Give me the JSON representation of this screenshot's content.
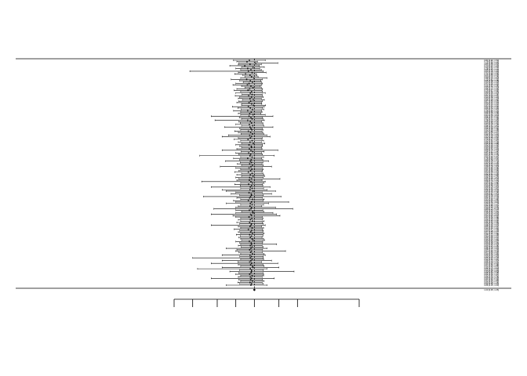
{
  "chart_data": {
    "type": "forest",
    "title": "",
    "xlabel": "",
    "scale": "log",
    "xlim": [
      0.05,
      50
    ],
    "x_ticks": [
      0.05,
      0.1,
      0.25,
      0.5,
      1,
      2.5,
      5,
      10,
      50
    ],
    "x_tick_labels": [
      "",
      "",
      "",
      "",
      "",
      "",
      "",
      "",
      ""
    ],
    "reference_line": 1,
    "pooled": {
      "label": "",
      "estimate": 1.0,
      "lower": 0.95,
      "upper": 1.05
    },
    "studies": [
      {
        "label": "",
        "estimate": 0.83,
        "lower": 0.46,
        "upper": 1.5
      },
      {
        "label": "",
        "estimate": 0.76,
        "lower": 0.52,
        "upper": 1.12
      },
      {
        "label": "",
        "estimate": 1.05,
        "lower": 0.56,
        "upper": 2.4
      },
      {
        "label": "",
        "estimate": 0.85,
        "lower": 0.55,
        "upper": 1.3
      },
      {
        "label": "",
        "estimate": 0.7,
        "lower": 0.4,
        "upper": 1.2
      },
      {
        "label": "",
        "estimate": 0.95,
        "lower": 0.62,
        "upper": 1.45
      },
      {
        "label": "",
        "estimate": 0.78,
        "lower": 0.5,
        "upper": 1.22
      },
      {
        "label": "",
        "estimate": 0.88,
        "lower": 0.6,
        "upper": 1.3
      },
      {
        "label": "",
        "estimate": 0.8,
        "lower": 0.09,
        "upper": 1.4
      },
      {
        "label": "",
        "estimate": 0.92,
        "lower": 0.55,
        "upper": 1.55
      },
      {
        "label": "",
        "estimate": 0.72,
        "lower": 0.48,
        "upper": 1.08
      },
      {
        "label": "",
        "estimate": 0.85,
        "lower": 0.65,
        "upper": 1.1
      },
      {
        "label": "",
        "estimate": 0.9,
        "lower": 0.7,
        "upper": 1.15
      },
      {
        "label": "",
        "estimate": 0.98,
        "lower": 0.6,
        "upper": 1.6
      },
      {
        "label": "",
        "estimate": 0.75,
        "lower": 0.42,
        "upper": 1.35
      },
      {
        "label": "",
        "estimate": 0.86,
        "lower": 0.58,
        "upper": 1.28
      },
      {
        "label": "",
        "estimate": 0.93,
        "lower": 0.66,
        "upper": 1.3
      },
      {
        "label": "",
        "estimate": 0.82,
        "lower": 0.5,
        "upper": 1.35
      },
      {
        "label": "",
        "estimate": 0.77,
        "lower": 0.45,
        "upper": 1.32
      },
      {
        "label": "",
        "estimate": 0.88,
        "lower": 0.62,
        "upper": 1.25
      },
      {
        "label": "",
        "estimate": 0.95,
        "lower": 0.7,
        "upper": 1.3
      },
      {
        "label": "",
        "estimate": 0.84,
        "lower": 0.52,
        "upper": 1.36
      },
      {
        "label": "",
        "estimate": 0.79,
        "lower": 0.47,
        "upper": 1.33
      },
      {
        "label": "",
        "estimate": 0.9,
        "lower": 0.6,
        "upper": 1.35
      },
      {
        "label": "",
        "estimate": 0.86,
        "lower": 0.5,
        "upper": 1.5
      },
      {
        "label": "",
        "estimate": 0.92,
        "lower": 0.63,
        "upper": 1.34
      },
      {
        "label": "",
        "estimate": 0.81,
        "lower": 0.49,
        "upper": 1.34
      },
      {
        "label": "",
        "estimate": 0.9,
        "lower": 0.58,
        "upper": 1.4
      },
      {
        "label": "",
        "estimate": 0.85,
        "lower": 0.55,
        "upper": 1.3
      },
      {
        "label": "",
        "estimate": 0.96,
        "lower": 0.64,
        "upper": 1.45
      },
      {
        "label": "",
        "estimate": 0.87,
        "lower": 0.56,
        "upper": 1.35
      },
      {
        "label": "",
        "estimate": 0.82,
        "lower": 0.52,
        "upper": 1.3
      },
      {
        "label": "",
        "estimate": 0.9,
        "lower": 0.62,
        "upper": 1.32
      },
      {
        "label": "",
        "estimate": 0.97,
        "lower": 0.62,
        "upper": 1.52
      },
      {
        "label": "",
        "estimate": 0.8,
        "lower": 0.44,
        "upper": 1.45
      },
      {
        "label": "",
        "estimate": 0.86,
        "lower": 0.54,
        "upper": 1.36
      },
      {
        "label": "",
        "estimate": 0.93,
        "lower": 0.61,
        "upper": 1.42
      },
      {
        "label": "",
        "estimate": 0.78,
        "lower": 0.46,
        "upper": 1.32
      },
      {
        "label": "",
        "estimate": 0.89,
        "lower": 0.6,
        "upper": 1.33
      },
      {
        "label": "",
        "estimate": 0.84,
        "lower": 0.55,
        "upper": 1.28
      },
      {
        "label": "",
        "estimate": 0.95,
        "lower": 0.6,
        "upper": 1.5
      },
      {
        "label": "",
        "estimate": 0.82,
        "lower": 0.2,
        "upper": 2.0
      },
      {
        "label": "",
        "estimate": 0.88,
        "lower": 0.57,
        "upper": 1.36
      },
      {
        "label": "",
        "estimate": 0.92,
        "lower": 0.62,
        "upper": 1.38
      },
      {
        "label": "",
        "estimate": 0.78,
        "lower": 0.23,
        "upper": 1.45
      },
      {
        "label": "",
        "estimate": 0.86,
        "lower": 0.56,
        "upper": 1.32
      },
      {
        "label": "",
        "estimate": 0.9,
        "lower": 0.59,
        "upper": 1.37
      },
      {
        "label": "",
        "estimate": 0.83,
        "lower": 0.5,
        "upper": 1.38
      },
      {
        "label": "",
        "estimate": 0.94,
        "lower": 0.62,
        "upper": 1.42
      },
      {
        "label": "",
        "estimate": 0.85,
        "lower": 0.33,
        "upper": 2.0
      },
      {
        "label": "",
        "estimate": 0.88,
        "lower": 0.58,
        "upper": 1.34
      },
      {
        "label": "",
        "estimate": 0.91,
        "lower": 0.6,
        "upper": 1.38
      },
      {
        "label": "",
        "estimate": 0.8,
        "lower": 0.48,
        "upper": 1.33
      },
      {
        "label": "",
        "estimate": 0.87,
        "lower": 0.55,
        "upper": 1.37
      },
      {
        "label": "",
        "estimate": 0.93,
        "lower": 0.61,
        "upper": 1.42
      },
      {
        "label": "",
        "estimate": 0.84,
        "lower": 0.38,
        "upper": 1.6
      },
      {
        "label": "",
        "estimate": 0.9,
        "lower": 0.3,
        "upper": 1.8
      },
      {
        "label": "",
        "estimate": 0.86,
        "lower": 0.55,
        "upper": 1.34
      },
      {
        "label": "",
        "estimate": 0.79,
        "lower": 0.47,
        "upper": 1.33
      },
      {
        "label": "",
        "estimate": 0.92,
        "lower": 0.6,
        "upper": 1.41
      },
      {
        "label": "",
        "estimate": 0.85,
        "lower": 0.55,
        "upper": 1.3
      },
      {
        "label": "",
        "estimate": 0.96,
        "lower": 0.62,
        "upper": 1.48
      },
      {
        "label": "",
        "estimate": 0.82,
        "lower": 0.5,
        "upper": 1.35
      },
      {
        "label": "",
        "estimate": 0.89,
        "lower": 0.58,
        "upper": 1.36
      },
      {
        "label": "",
        "estimate": 0.9,
        "lower": 0.62,
        "upper": 1.31
      },
      {
        "label": "",
        "estimate": 0.83,
        "lower": 0.52,
        "upper": 1.33
      },
      {
        "label": "",
        "estimate": 0.88,
        "lower": 0.3,
        "upper": 2.4
      },
      {
        "label": "",
        "estimate": 0.94,
        "lower": 0.61,
        "upper": 1.44
      },
      {
        "label": "",
        "estimate": 0.81,
        "lower": 0.5,
        "upper": 1.31
      },
      {
        "label": "",
        "estimate": 0.87,
        "lower": 0.56,
        "upper": 1.35
      },
      {
        "label": "",
        "estimate": 0.85,
        "lower": 0.13,
        "upper": 2.1
      },
      {
        "label": "",
        "estimate": 0.92,
        "lower": 0.6,
        "upper": 1.41
      },
      {
        "label": "",
        "estimate": 0.78,
        "lower": 0.46,
        "upper": 1.32
      },
      {
        "label": "",
        "estimate": 0.89,
        "lower": 0.58,
        "upper": 1.37
      },
      {
        "label": "",
        "estimate": 0.86,
        "lower": 0.34,
        "upper": 1.7
      },
      {
        "label": "",
        "estimate": 0.9,
        "lower": 0.59,
        "upper": 1.38
      },
      {
        "label": "",
        "estimate": 0.84,
        "lower": 0.53,
        "upper": 1.33
      },
      {
        "label": "",
        "estimate": 0.93,
        "lower": 0.62,
        "upper": 1.4
      },
      {
        "label": "",
        "estimate": 0.88,
        "lower": 0.28,
        "upper": 1.9
      },
      {
        "label": "",
        "estimate": 0.82,
        "lower": 0.5,
        "upper": 1.34
      },
      {
        "label": "",
        "estimate": 0.91,
        "lower": 0.6,
        "upper": 1.39
      },
      {
        "label": "",
        "estimate": 0.87,
        "lower": 0.56,
        "upper": 1.35
      },
      {
        "label": "",
        "estimate": 0.8,
        "lower": 0.48,
        "upper": 1.33
      },
      {
        "label": "",
        "estimate": 0.92,
        "lower": 0.62,
        "upper": 1.38
      },
      {
        "label": "",
        "estimate": 0.86,
        "lower": 0.52,
        "upper": 1.42
      },
      {
        "label": "",
        "estimate": 0.95,
        "lower": 0.62,
        "upper": 1.46
      },
      {
        "label": "",
        "estimate": 0.84,
        "lower": 0.5,
        "upper": 1.4
      },
      {
        "label": "",
        "estimate": 0.9,
        "lower": 0.56,
        "upper": 2.6
      },
      {
        "label": "",
        "estimate": 0.83,
        "lower": 0.52,
        "upper": 1.33
      },
      {
        "label": "",
        "estimate": 0.88,
        "lower": 0.14,
        "upper": 1.5
      },
      {
        "label": "",
        "estimate": 0.93,
        "lower": 0.6,
        "upper": 1.44
      },
      {
        "label": "",
        "estimate": 0.81,
        "lower": 0.48,
        "upper": 1.36
      },
      {
        "label": "",
        "estimate": 0.9,
        "lower": 0.59,
        "upper": 1.37
      },
      {
        "label": "",
        "estimate": 0.86,
        "lower": 0.2,
        "upper": 1.8
      },
      {
        "label": "",
        "estimate": 0.92,
        "lower": 0.6,
        "upper": 1.41
      },
      {
        "label": "",
        "estimate": 0.85,
        "lower": 0.3,
        "upper": 1.6
      },
      {
        "label": "",
        "estimate": 0.95,
        "lower": 0.35,
        "upper": 2.2
      },
      {
        "label": "",
        "estimate": 0.82,
        "lower": 0.5,
        "upper": 1.34
      },
      {
        "label": "",
        "estimate": 0.89,
        "lower": 0.42,
        "upper": 1.9
      },
      {
        "label": "",
        "estimate": 0.9,
        "lower": 0.58,
        "upper": 1.4
      },
      {
        "label": "",
        "estimate": 0.87,
        "lower": 0.15,
        "upper": 2.7
      },
      {
        "label": "",
        "estimate": 0.84,
        "lower": 0.52,
        "upper": 1.35
      },
      {
        "label": "",
        "estimate": 0.93,
        "lower": 0.6,
        "upper": 1.44
      },
      {
        "label": "",
        "estimate": 0.8,
        "lower": 0.46,
        "upper": 1.39
      },
      {
        "label": "",
        "estimate": 0.9,
        "lower": 0.5,
        "upper": 3.6
      },
      {
        "label": "",
        "estimate": 0.86,
        "lower": 0.35,
        "upper": 1.7
      },
      {
        "label": "",
        "estimate": 0.92,
        "lower": 0.6,
        "upper": 1.41
      },
      {
        "label": "",
        "estimate": 0.85,
        "lower": 0.55,
        "upper": 1.32
      },
      {
        "label": "",
        "estimate": 0.9,
        "lower": 0.5,
        "upper": 2.2
      },
      {
        "label": "",
        "estimate": 0.88,
        "lower": 0.22,
        "upper": 4.2
      },
      {
        "label": "",
        "estimate": 0.83,
        "lower": 0.5,
        "upper": 1.37
      },
      {
        "label": "",
        "estimate": 0.94,
        "lower": 0.62,
        "upper": 1.42
      },
      {
        "label": "",
        "estimate": 0.95,
        "lower": 0.5,
        "upper": 2.0
      },
      {
        "label": "",
        "estimate": 0.87,
        "lower": 0.2,
        "upper": 2.3
      },
      {
        "label": "",
        "estimate": 0.9,
        "lower": 0.45,
        "upper": 2.6
      },
      {
        "label": "",
        "estimate": 0.82,
        "lower": 0.5,
        "upper": 1.34
      },
      {
        "label": "",
        "estimate": 0.91,
        "lower": 0.6,
        "upper": 1.38
      },
      {
        "label": "",
        "estimate": 0.86,
        "lower": 0.55,
        "upper": 1.35
      },
      {
        "label": "",
        "estimate": 0.93,
        "lower": 0.6,
        "upper": 1.44
      },
      {
        "label": "",
        "estimate": 0.84,
        "lower": 0.52,
        "upper": 1.36
      },
      {
        "label": "",
        "estimate": 0.9,
        "lower": 0.58,
        "upper": 1.39
      },
      {
        "label": "",
        "estimate": 0.88,
        "lower": 0.2,
        "upper": 1.5
      },
      {
        "label": "",
        "estimate": 0.85,
        "lower": 0.55,
        "upper": 1.31
      },
      {
        "label": "",
        "estimate": 0.92,
        "lower": 0.6,
        "upper": 1.41
      },
      {
        "label": "",
        "estimate": 0.8,
        "lower": 0.47,
        "upper": 1.36
      },
      {
        "label": "",
        "estimate": 0.9,
        "lower": 0.58,
        "upper": 1.39
      },
      {
        "label": "",
        "estimate": 0.87,
        "lower": 0.55,
        "upper": 1.37
      },
      {
        "label": "",
        "estimate": 0.93,
        "lower": 0.6,
        "upper": 1.44
      },
      {
        "label": "",
        "estimate": 0.84,
        "lower": 0.51,
        "upper": 1.38
      },
      {
        "label": "",
        "estimate": 0.9,
        "lower": 0.59,
        "upper": 1.37
      },
      {
        "label": "",
        "estimate": 0.86,
        "lower": 0.56,
        "upper": 1.33
      },
      {
        "label": "",
        "estimate": 0.92,
        "lower": 0.6,
        "upper": 1.41
      },
      {
        "label": "",
        "estimate": 0.95,
        "lower": 0.62,
        "upper": 1.46
      },
      {
        "label": "",
        "estimate": 0.83,
        "lower": 0.5,
        "upper": 1.37
      },
      {
        "label": "",
        "estimate": 0.89,
        "lower": 0.58,
        "upper": 1.36
      },
      {
        "label": "",
        "estimate": 0.9,
        "lower": 0.6,
        "upper": 2.3
      },
      {
        "label": "",
        "estimate": 0.86,
        "lower": 0.55,
        "upper": 1.34
      },
      {
        "label": "",
        "estimate": 0.92,
        "lower": 0.61,
        "upper": 1.39
      },
      {
        "label": "",
        "estimate": 0.88,
        "lower": 0.35,
        "upper": 1.6
      },
      {
        "label": "",
        "estimate": 0.84,
        "lower": 0.52,
        "upper": 1.36
      },
      {
        "label": "",
        "estimate": 0.9,
        "lower": 0.5,
        "upper": 3.2
      },
      {
        "label": "",
        "estimate": 0.87,
        "lower": 0.56,
        "upper": 1.35
      },
      {
        "label": "",
        "estimate": 0.93,
        "lower": 0.6,
        "upper": 1.44
      },
      {
        "label": "",
        "estimate": 0.85,
        "lower": 0.3,
        "upper": 1.5
      },
      {
        "label": "",
        "estimate": 0.9,
        "lower": 0.58,
        "upper": 1.4
      },
      {
        "label": "",
        "estimate": 0.86,
        "lower": 0.1,
        "upper": 1.4
      },
      {
        "label": "",
        "estimate": 0.92,
        "lower": 0.6,
        "upper": 1.41
      },
      {
        "label": "",
        "estimate": 0.88,
        "lower": 0.3,
        "upper": 1.9
      },
      {
        "label": "",
        "estimate": 0.84,
        "lower": 0.54,
        "upper": 1.31
      },
      {
        "label": "",
        "estimate": 0.9,
        "lower": 0.2,
        "upper": 2.4
      },
      {
        "label": "",
        "estimate": 0.87,
        "lower": 0.55,
        "upper": 1.38
      },
      {
        "label": "",
        "estimate": 0.93,
        "lower": 0.6,
        "upper": 1.44
      },
      {
        "label": "",
        "estimate": 0.95,
        "lower": 0.3,
        "upper": 2.5
      },
      {
        "label": "",
        "estimate": 0.86,
        "lower": 0.12,
        "upper": 1.6
      },
      {
        "label": "",
        "estimate": 0.9,
        "lower": 0.58,
        "upper": 1.4
      },
      {
        "label": "",
        "estimate": 0.9,
        "lower": 0.4,
        "upper": 4.4
      },
      {
        "label": "",
        "estimate": 0.88,
        "lower": 0.56,
        "upper": 1.38
      },
      {
        "label": "",
        "estimate": 0.84,
        "lower": 0.5,
        "upper": 1.41
      },
      {
        "label": "",
        "estimate": 0.92,
        "lower": 0.6,
        "upper": 1.41
      },
      {
        "label": "",
        "estimate": 0.86,
        "lower": 0.55,
        "upper": 1.34
      },
      {
        "label": "",
        "estimate": 0.9,
        "lower": 0.2,
        "upper": 2.1
      },
      {
        "label": "",
        "estimate": 0.87,
        "lower": 0.56,
        "upper": 1.35
      },
      {
        "label": "",
        "estimate": 0.93,
        "lower": 0.6,
        "upper": 1.44
      },
      {
        "label": "",
        "estimate": 0.85,
        "lower": 0.54,
        "upper": 1.34
      },
      {
        "label": "",
        "estimate": 0.9,
        "lower": 0.58,
        "upper": 1.4
      },
      {
        "label": "",
        "estimate": 0.88,
        "lower": 0.35,
        "upper": 1.6
      }
    ]
  }
}
